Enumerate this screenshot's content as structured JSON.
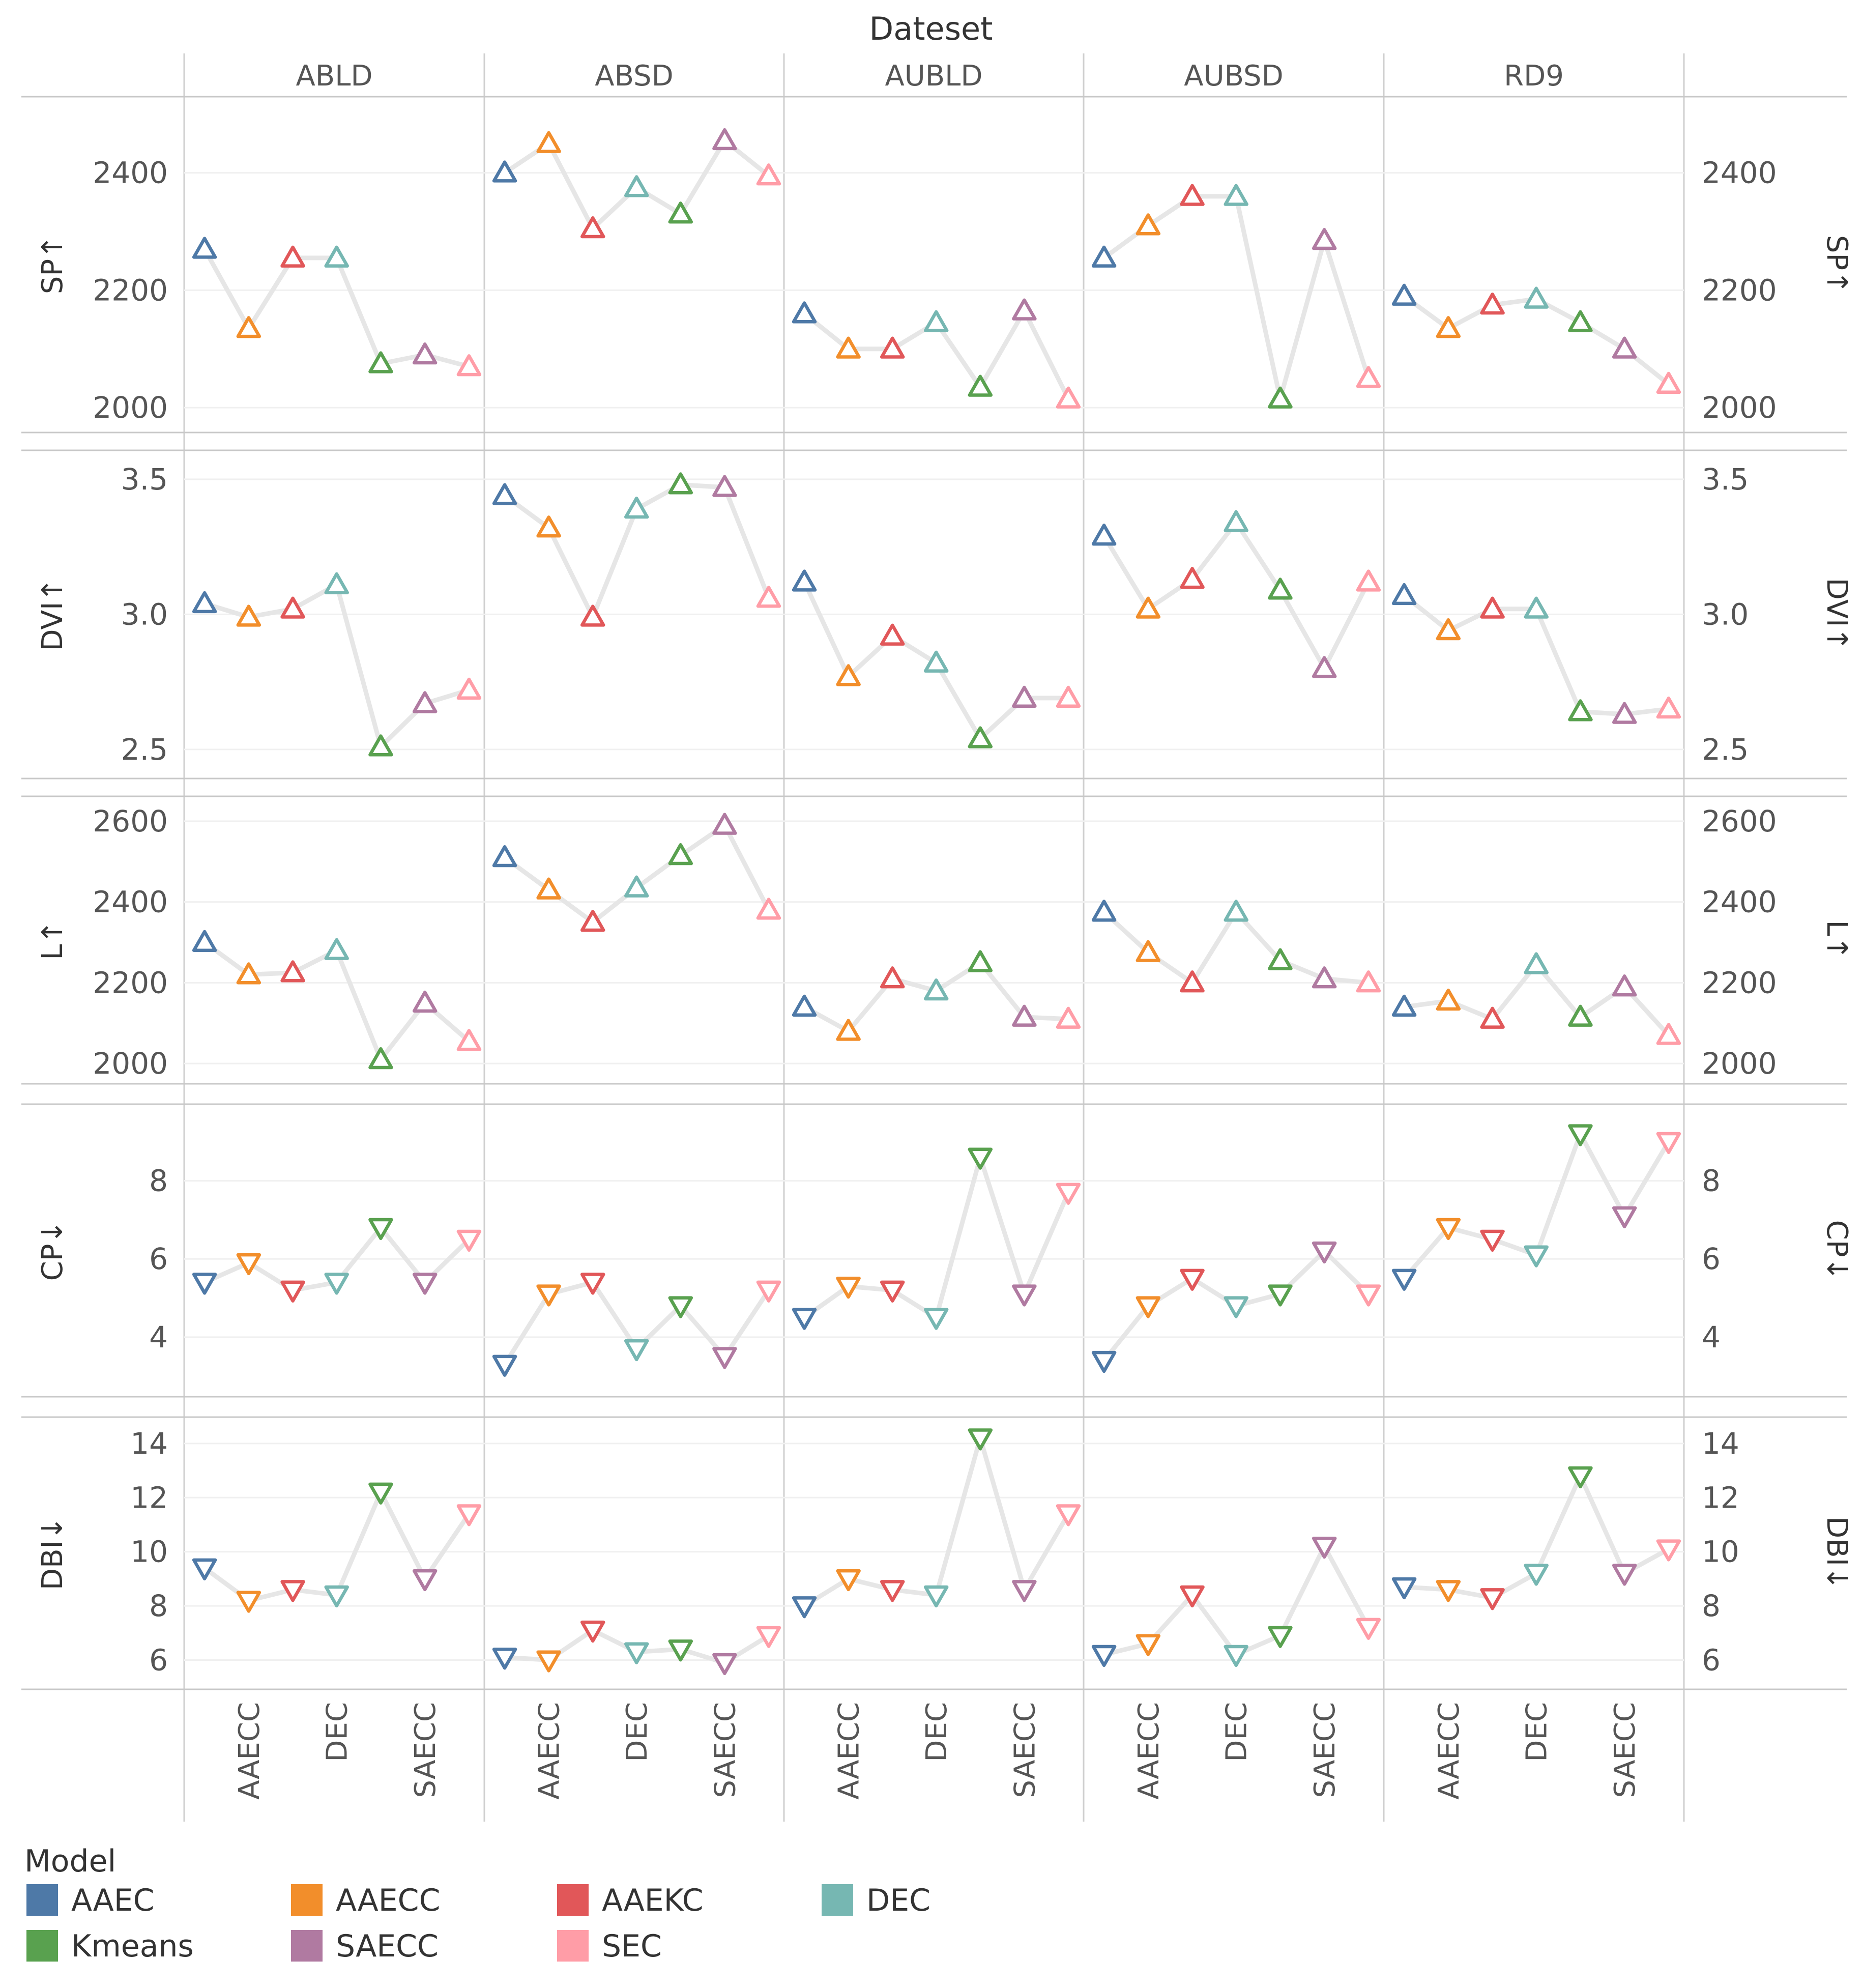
{
  "chart_data": {
    "type": "line",
    "title": "Dateset",
    "datasets": [
      "ABLD",
      "ABSD",
      "AUBLD",
      "AUBSD",
      "RD9"
    ],
    "models": [
      "AAEC",
      "AAECC",
      "AAEKC",
      "DEC",
      "Kmeans",
      "SAECC",
      "SEC"
    ],
    "x_tick_labels": [
      "AAECC",
      "DEC",
      "SAECC"
    ],
    "legend": {
      "title": "Model",
      "position": "bottom-left",
      "entries": [
        {
          "name": "AAEC",
          "color": "#4e79a7"
        },
        {
          "name": "AAECC",
          "color": "#f28e2b"
        },
        {
          "name": "AAEKC",
          "color": "#e15759"
        },
        {
          "name": "DEC",
          "color": "#76b7b2"
        },
        {
          "name": "Kmeans",
          "color": "#59a14f"
        },
        {
          "name": "SAECC",
          "color": "#b07aa1"
        },
        {
          "name": "SEC",
          "color": "#ff9da7"
        }
      ]
    },
    "line_color": "#e6e6e6",
    "metrics": [
      {
        "name": "SP↑",
        "direction": "up",
        "ylim": [
          1975,
          2495
        ],
        "ticks": [
          2000,
          2200,
          2400
        ],
        "tick_labels": [
          "2000",
          "2200",
          "2400"
        ],
        "values": {
          "ABLD": [
            2270,
            2135,
            2255,
            2255,
            2075,
            2090,
            2070
          ],
          "ABSD": [
            2400,
            2450,
            2305,
            2375,
            2330,
            2455,
            2395
          ],
          "AUBLD": [
            2160,
            2100,
            2100,
            2145,
            2035,
            2165,
            2015
          ],
          "AUBSD": [
            2255,
            2310,
            2360,
            2360,
            2015,
            2285,
            2050
          ],
          "RD9": [
            2190,
            2135,
            2175,
            2185,
            2145,
            2100,
            2040
          ]
        }
      },
      {
        "name": "DVI↑",
        "direction": "up",
        "ylim": [
          2.43,
          3.56
        ],
        "ticks": [
          2.5,
          3.0,
          3.5
        ],
        "tick_labels": [
          "2.5",
          "3.0",
          "3.5"
        ],
        "values": {
          "ABLD": [
            3.04,
            2.99,
            3.02,
            3.11,
            2.51,
            2.67,
            2.72
          ],
          "ABSD": [
            3.44,
            3.32,
            2.99,
            3.39,
            3.48,
            3.47,
            3.06
          ],
          "AUBLD": [
            3.12,
            2.77,
            2.92,
            2.82,
            2.54,
            2.69,
            2.69
          ],
          "AUBSD": [
            3.29,
            3.02,
            3.13,
            3.34,
            3.09,
            2.8,
            3.12
          ],
          "RD9": [
            3.07,
            2.94,
            3.02,
            3.02,
            2.64,
            2.63,
            2.65
          ]
        }
      },
      {
        "name": "L↑",
        "direction": "up",
        "ylim": [
          1975,
          2630
        ],
        "ticks": [
          2000,
          2200,
          2400,
          2600
        ],
        "tick_labels": [
          "2000",
          "2200",
          "2400",
          "2600"
        ],
        "values": {
          "ABLD": [
            2300,
            2220,
            2225,
            2280,
            2010,
            2150,
            2055
          ],
          "ABSD": [
            2510,
            2430,
            2350,
            2435,
            2515,
            2590,
            2380
          ],
          "AUBLD": [
            2140,
            2080,
            2210,
            2180,
            2250,
            2115,
            2110
          ],
          "AUBSD": [
            2375,
            2275,
            2200,
            2375,
            2255,
            2210,
            2200
          ],
          "RD9": [
            2140,
            2155,
            2110,
            2245,
            2115,
            2190,
            2070
          ]
        }
      },
      {
        "name": "CP↓",
        "direction": "down",
        "ylim": [
          2.8,
          9.7
        ],
        "ticks": [
          4,
          6,
          8
        ],
        "tick_labels": [
          "4",
          "6",
          "8"
        ],
        "values": {
          "ABLD": [
            5.4,
            5.9,
            5.2,
            5.4,
            6.8,
            5.4,
            6.5
          ],
          "ABSD": [
            3.3,
            5.1,
            5.4,
            3.7,
            4.8,
            3.5,
            5.2
          ],
          "AUBLD": [
            4.5,
            5.3,
            5.2,
            4.5,
            8.6,
            5.1,
            7.7
          ],
          "AUBSD": [
            3.4,
            4.8,
            5.5,
            4.8,
            5.1,
            6.2,
            5.1
          ],
          "RD9": [
            5.5,
            6.8,
            6.5,
            6.1,
            9.2,
            7.1,
            9.0
          ]
        }
      },
      {
        "name": "DBI↓",
        "direction": "down",
        "ylim": [
          5.2,
          14.6
        ],
        "ticks": [
          6,
          8,
          10,
          12,
          14
        ],
        "tick_labels": [
          "6",
          "8",
          "10",
          "12",
          "14"
        ],
        "values": {
          "ABLD": [
            9.4,
            8.2,
            8.6,
            8.4,
            12.2,
            9.0,
            11.4
          ],
          "ABSD": [
            6.1,
            6.0,
            7.1,
            6.3,
            6.4,
            5.9,
            6.9
          ],
          "AUBLD": [
            8.0,
            9.0,
            8.6,
            8.4,
            14.2,
            8.6,
            11.4
          ],
          "AUBSD": [
            6.2,
            6.6,
            8.4,
            6.2,
            6.9,
            10.2,
            7.2
          ],
          "RD9": [
            8.7,
            8.6,
            8.3,
            9.2,
            12.8,
            9.2,
            10.1
          ]
        }
      }
    ]
  }
}
